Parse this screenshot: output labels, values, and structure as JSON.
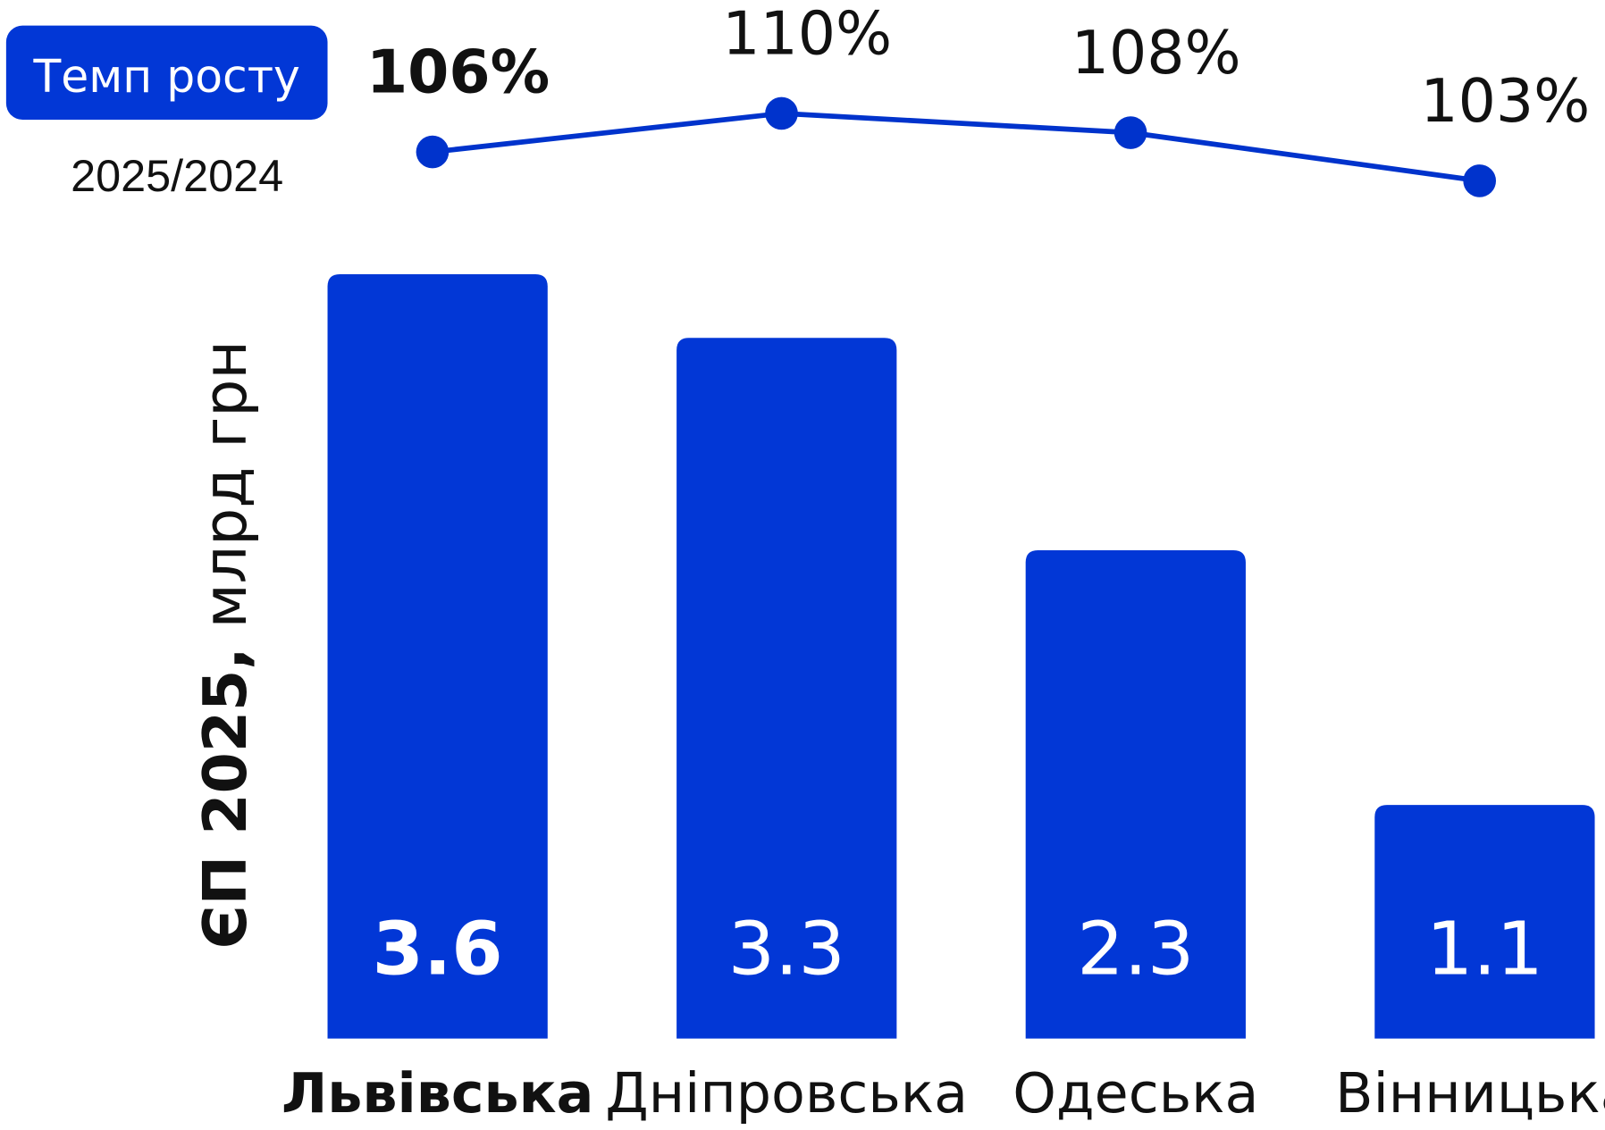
{
  "chart_data": {
    "type": "bar",
    "legend_title": "Темп росту",
    "legend_subtitle": "2025/2024",
    "ylabel": {
      "main": "ЄП 2025,",
      "unit": "млрд грн"
    },
    "categories": [
      "Львівська",
      "Дніпровська",
      "Одеська",
      "Вінницька"
    ],
    "ylim": [
      0,
      3.6
    ],
    "y2lim": [
      100,
      112
    ],
    "series": [
      {
        "name": "ЄП 2025",
        "type": "bar",
        "color": "#0237d6",
        "values": [
          3.6,
          3.3,
          2.3,
          1.1
        ]
      },
      {
        "name": "Темп росту",
        "type": "line",
        "axis": "y2",
        "color": "#0033cc",
        "values": [
          106,
          110,
          108,
          103
        ],
        "value_labels": [
          "106%",
          "110%",
          "108%",
          "103%"
        ]
      }
    ]
  }
}
